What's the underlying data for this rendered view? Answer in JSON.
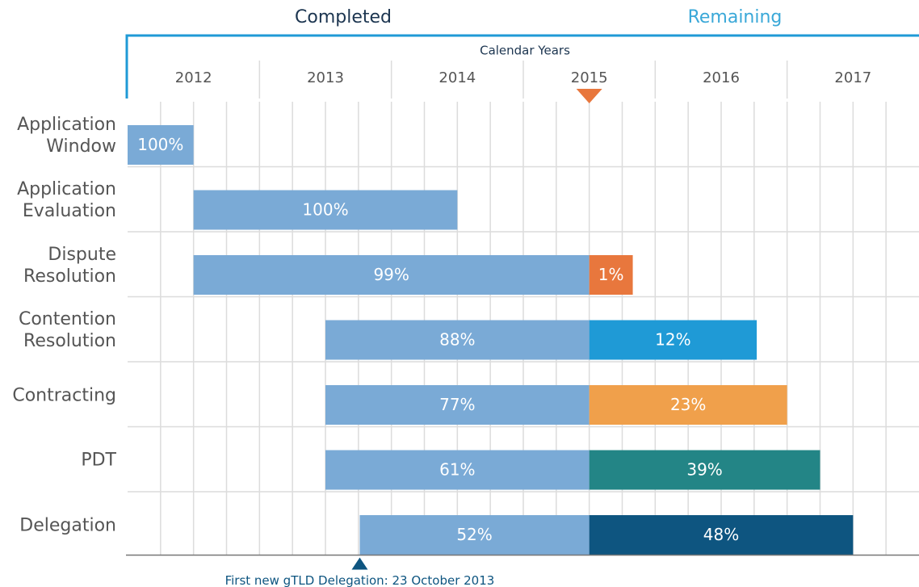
{
  "chart_data": {
    "type": "gantt",
    "header_left": "Completed",
    "header_right": "Remaining",
    "axis_title": "Calendar Years",
    "xlim": [
      2012,
      2018
    ],
    "xticks": [
      {
        "value": 2012.5,
        "label": "2012"
      },
      {
        "value": 2013.5,
        "label": "2013"
      },
      {
        "value": 2014.5,
        "label": "2014"
      },
      {
        "value": 2015.5,
        "label": "2015"
      },
      {
        "value": 2016.5,
        "label": "2016"
      },
      {
        "value": 2017.5,
        "label": "2017"
      }
    ],
    "xminor": 0.25,
    "grid": true,
    "now": 2015.5,
    "now_color": "#e8773d",
    "completed_color": "#7aaad6",
    "tasks": [
      {
        "name": "Application Window",
        "start": 2012,
        "split": 2012.5,
        "end": 2012.5,
        "values": [
          100
        ],
        "value_labels": [
          "100%"
        ],
        "colors": []
      },
      {
        "name": "Application Evaluation",
        "start": 2012.5,
        "split": 2014.5,
        "end": 2014.5,
        "values": [
          100
        ],
        "value_labels": [
          "100%"
        ],
        "colors": []
      },
      {
        "name": "Dispute Resolution",
        "start": 2012.5,
        "split": 2015.5,
        "end": 2015.83,
        "values": [
          99,
          1
        ],
        "value_labels": [
          "99%",
          "1%"
        ],
        "colors": [
          "#e8773d"
        ]
      },
      {
        "name": "Contention Resolution",
        "start": 2013.5,
        "split": 2015.5,
        "end": 2016.77,
        "values": [
          88,
          12
        ],
        "value_labels": [
          "88%",
          "12%"
        ],
        "colors": [
          "#1f9ad6"
        ]
      },
      {
        "name": "Contracting",
        "start": 2013.5,
        "split": 2015.5,
        "end": 2017,
        "values": [
          77,
          23
        ],
        "value_labels": [
          "77%",
          "23%"
        ],
        "colors": [
          "#f0a04b"
        ]
      },
      {
        "name": "PDT",
        "start": 2013.5,
        "split": 2015.5,
        "end": 2017.25,
        "values": [
          61,
          39
        ],
        "value_labels": [
          "61%",
          "39%"
        ],
        "colors": [
          "#238586"
        ]
      },
      {
        "name": "Delegation",
        "start": 2013.76,
        "split": 2015.5,
        "end": 2017.5,
        "values": [
          52,
          48
        ],
        "value_labels": [
          "52%",
          "48%"
        ],
        "colors": [
          "#0e5580"
        ]
      }
    ],
    "annotation": {
      "x": 2013.76,
      "text": "First new gTLD Delegation: 23 October 2013",
      "color": "#0e5580"
    }
  }
}
